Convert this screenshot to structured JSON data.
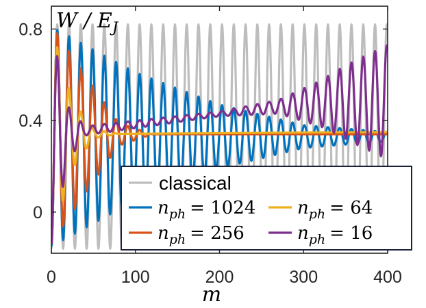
{
  "chart_data": {
    "type": "line",
    "xlabel": "m",
    "ylabel": {
      "main": "W",
      "sep": "/",
      "base": "E",
      "sub": "J"
    },
    "xlim": [
      0,
      400
    ],
    "ylim": [
      -0.18,
      0.9
    ],
    "xticks": [
      0,
      100,
      200,
      300,
      400
    ],
    "xtick_labels": [
      "0",
      "100",
      "200",
      "300",
      "400"
    ],
    "yticks": [
      0,
      0.4,
      0.8
    ],
    "ytick_labels": [
      "0",
      "0.4",
      "0.8"
    ],
    "grid": false,
    "legend_position": "bottom-right",
    "colors": {
      "classical": "#bdbdbd",
      "n1024": "#0072bd",
      "n256": "#d95319",
      "n64": "#edb120",
      "n16": "#7e2f8e"
    },
    "series": [
      {
        "key": "classical",
        "label": "classical",
        "color": "#bdbdbd",
        "oscillation_period_m": 14,
        "mean": 0.33,
        "amplitude": [
          [
            0,
            0.49
          ],
          [
            400,
            0.49
          ]
        ]
      },
      {
        "key": "n1024",
        "label_math": {
          "base": "n",
          "sub": "ph",
          "rest": "= 1024"
        },
        "color": "#0072bd",
        "oscillation_period_m": 14,
        "mean": [
          [
            0,
            0.33
          ],
          [
            400,
            0.33
          ]
        ],
        "amplitude": [
          [
            0,
            0.48
          ],
          [
            100,
            0.28
          ],
          [
            200,
            0.14
          ],
          [
            300,
            0.05
          ],
          [
            400,
            0.02
          ]
        ]
      },
      {
        "key": "n256",
        "label_math": {
          "base": "n",
          "sub": "ph",
          "rest": "= 256"
        },
        "color": "#d95319",
        "oscillation_period_m": 14,
        "mean": [
          [
            0,
            0.34
          ],
          [
            400,
            0.34
          ]
        ],
        "amplitude": [
          [
            0,
            0.48
          ],
          [
            40,
            0.26
          ],
          [
            80,
            0.05
          ],
          [
            120,
            0.0
          ],
          [
            400,
            0.0
          ]
        ]
      },
      {
        "key": "n64",
        "label_math": {
          "base": "n",
          "sub": "ph",
          "rest": "= 64"
        },
        "color": "#edb120",
        "oscillation_period_m": 14,
        "mean": [
          [
            0,
            0.34
          ],
          [
            400,
            0.35
          ]
        ],
        "amplitude": [
          [
            0,
            0.47
          ],
          [
            25,
            0.15
          ],
          [
            50,
            0.02
          ],
          [
            80,
            0.0
          ],
          [
            400,
            0.0
          ]
        ]
      },
      {
        "key": "n16",
        "label_math": {
          "base": "n",
          "sub": "ph",
          "rest": "= 16"
        },
        "color": "#7e2f8e",
        "oscillation_period_m": 14,
        "mean": [
          [
            0,
            0.33
          ],
          [
            50,
            0.36
          ],
          [
            180,
            0.42
          ],
          [
            270,
            0.46
          ],
          [
            340,
            0.48
          ],
          [
            400,
            0.48
          ]
        ],
        "amplitude": [
          [
            0,
            0.47
          ],
          [
            20,
            0.12
          ],
          [
            40,
            0.02
          ],
          [
            200,
            0.01
          ],
          [
            270,
            0.03
          ],
          [
            320,
            0.1
          ],
          [
            360,
            0.18
          ],
          [
            400,
            0.25
          ]
        ]
      }
    ],
    "legend": [
      {
        "key": "classical"
      },
      {
        "key": "n1024"
      },
      {
        "key": "n64"
      },
      {
        "key": "n256"
      },
      {
        "key": "n16"
      }
    ]
  }
}
